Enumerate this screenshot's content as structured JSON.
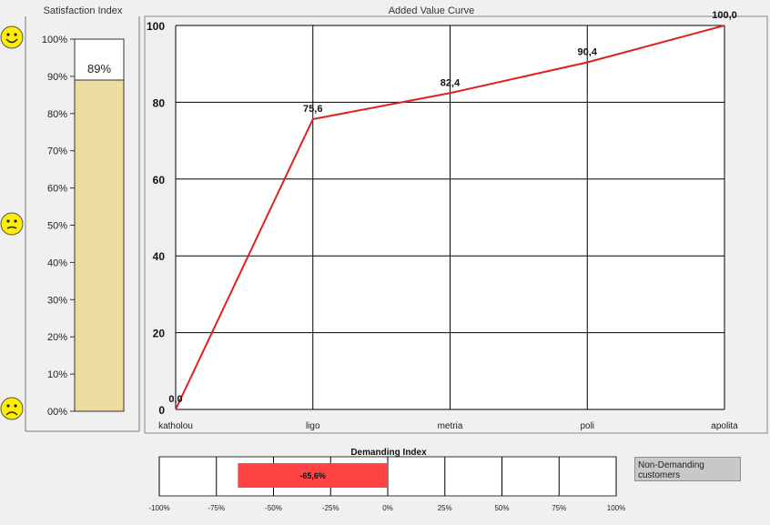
{
  "chart_data": [
    {
      "type": "bar",
      "title": "Satisfaction Index",
      "ylim": [
        0,
        100
      ],
      "ytick_labels": [
        "00%",
        "10%",
        "20%",
        "30%",
        "40%",
        "50%",
        "60%",
        "70%",
        "80%",
        "90%",
        "100%"
      ],
      "values": [
        89
      ],
      "value_label": "89%",
      "bar_color": "#ecdca0",
      "face_icons": [
        "happy-face-icon",
        "neutral-face-icon",
        "sad-face-icon"
      ]
    },
    {
      "type": "line",
      "title": "Added Value Curve",
      "categories": [
        "katholou",
        "ligo",
        "metria",
        "poli",
        "apolita"
      ],
      "values": [
        0.0,
        75.6,
        82.4,
        90.4,
        100.0
      ],
      "data_labels": [
        "0,0",
        "75,6",
        "82,4",
        "90,4",
        "100,0"
      ],
      "yticks": [
        0,
        20,
        40,
        60,
        80,
        100
      ],
      "ylim": [
        0,
        100
      ],
      "grid": true,
      "line_color": "#e02020"
    },
    {
      "type": "bar",
      "title": "Demanding Index",
      "orientation": "horizontal",
      "xlim": [
        -100,
        100
      ],
      "xtick_labels": [
        "-100%",
        "-75%",
        "-50%",
        "-25%",
        "0%",
        "25%",
        "50%",
        "75%",
        "100%"
      ],
      "values": [
        -65.6
      ],
      "value_label": "-65,6%",
      "bar_color": "#ff4444"
    }
  ],
  "legend": {
    "label": "Non-Demanding customers"
  }
}
